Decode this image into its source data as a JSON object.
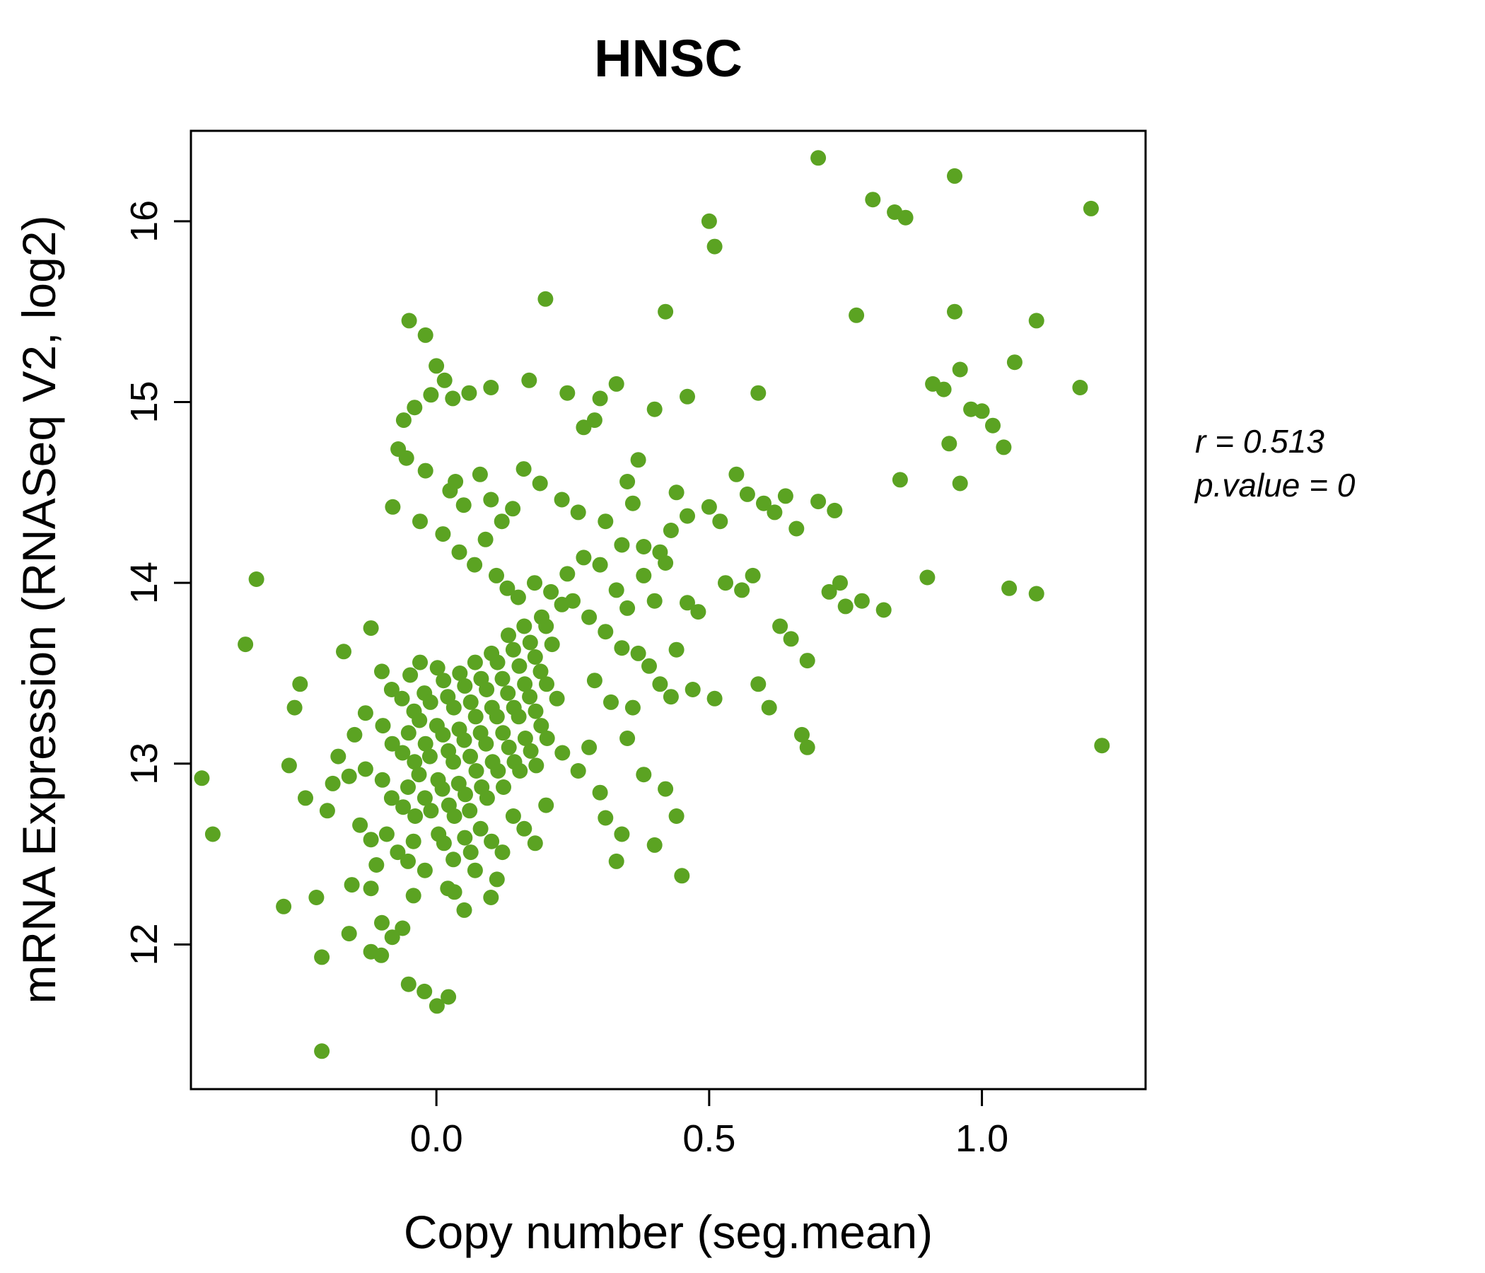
{
  "chart_data": {
    "type": "scatter",
    "title": "HNSC",
    "xlabel": "Copy number (seg.mean)",
    "ylabel": "mRNA Expression (RNASeq V2, log2)",
    "annotation": {
      "r_line": "r = 0.513",
      "p_line": "p.value = 0"
    },
    "xlim": [
      -0.45,
      1.3
    ],
    "ylim": [
      11.2,
      16.5
    ],
    "x_ticks": [
      {
        "value": 0.0,
        "label": "0.0"
      },
      {
        "value": 0.5,
        "label": "0.5"
      },
      {
        "value": 1.0,
        "label": "1.0"
      }
    ],
    "y_ticks": [
      {
        "value": 12,
        "label": "12"
      },
      {
        "value": 13,
        "label": "13"
      },
      {
        "value": 14,
        "label": "14"
      },
      {
        "value": 15,
        "label": "15"
      },
      {
        "value": 16,
        "label": "16"
      }
    ],
    "grid": false,
    "legend": "none",
    "colors": {
      "point": "#5ba322",
      "title": "#5ba322",
      "axis": "#000000"
    },
    "points": [
      [
        -0.43,
        12.92
      ],
      [
        -0.41,
        12.61
      ],
      [
        -0.33,
        14.02
      ],
      [
        -0.35,
        13.66
      ],
      [
        -0.27,
        12.99
      ],
      [
        -0.26,
        13.31
      ],
      [
        -0.25,
        13.44
      ],
      [
        -0.24,
        12.81
      ],
      [
        -0.28,
        12.21
      ],
      [
        -0.22,
        12.26
      ],
      [
        -0.21,
        11.93
      ],
      [
        -0.2,
        12.74
      ],
      [
        -0.19,
        12.89
      ],
      [
        -0.18,
        13.04
      ],
      [
        -0.17,
        13.62
      ],
      [
        -0.16,
        12.93
      ],
      [
        -0.21,
        11.41
      ],
      [
        -0.155,
        12.33
      ],
      [
        -0.15,
        13.16
      ],
      [
        -0.13,
        12.97
      ],
      [
        -0.14,
        12.66
      ],
      [
        -0.12,
        12.58
      ],
      [
        -0.13,
        13.28
      ],
      [
        -0.12,
        13.75
      ],
      [
        -0.11,
        12.44
      ],
      [
        -0.16,
        12.06
      ],
      [
        -0.12,
        11.96
      ],
      [
        -0.1,
        12.12
      ],
      [
        -0.05,
        15.45
      ],
      [
        -0.02,
        15.37
      ],
      [
        0.0,
        15.2
      ],
      [
        -0.01,
        15.04
      ],
      [
        0.015,
        15.12
      ],
      [
        -0.04,
        14.97
      ],
      [
        -0.06,
        14.9
      ],
      [
        -0.07,
        14.74
      ],
      [
        -0.055,
        14.69
      ],
      [
        -0.08,
        14.42
      ],
      [
        -0.02,
        14.62
      ],
      [
        0.025,
        14.51
      ],
      [
        0.035,
        14.56
      ],
      [
        -0.03,
        14.34
      ],
      [
        0.05,
        14.43
      ],
      [
        0.012,
        14.27
      ],
      [
        0.042,
        14.17
      ],
      [
        0.08,
        14.6
      ],
      [
        0.1,
        14.46
      ],
      [
        0.12,
        14.34
      ],
      [
        0.09,
        14.24
      ],
      [
        0.14,
        14.41
      ],
      [
        0.07,
        14.1
      ],
      [
        0.11,
        14.04
      ],
      [
        0.13,
        13.97
      ],
      [
        0.03,
        15.02
      ],
      [
        0.06,
        15.05
      ],
      [
        0.1,
        15.08
      ],
      [
        0.17,
        15.12
      ],
      [
        0.2,
        15.57
      ],
      [
        0.24,
        15.05
      ],
      [
        0.27,
        14.86
      ],
      [
        0.3,
        15.02
      ],
      [
        0.29,
        14.9
      ],
      [
        0.33,
        15.1
      ],
      [
        0.35,
        14.56
      ],
      [
        0.38,
        14.2
      ],
      [
        0.4,
        14.96
      ],
      [
        0.42,
        15.5
      ],
      [
        0.36,
        14.44
      ],
      [
        0.23,
        14.46
      ],
      [
        0.26,
        14.39
      ],
      [
        0.31,
        14.34
      ],
      [
        0.34,
        14.21
      ],
      [
        0.41,
        14.17
      ],
      [
        0.44,
        14.5
      ],
      [
        0.46,
        14.37
      ],
      [
        0.43,
        14.29
      ],
      [
        0.37,
        14.68
      ],
      [
        0.46,
        15.03
      ],
      [
        0.7,
        16.35
      ],
      [
        0.95,
        16.25
      ],
      [
        0.8,
        16.12
      ],
      [
        0.84,
        16.05
      ],
      [
        1.2,
        16.07
      ],
      [
        0.77,
        15.48
      ],
      [
        0.95,
        15.5
      ],
      [
        1.1,
        15.45
      ],
      [
        0.5,
        16.0
      ],
      [
        0.51,
        15.86
      ],
      [
        0.59,
        15.05
      ],
      [
        0.91,
        15.1
      ],
      [
        0.93,
        15.07
      ],
      [
        0.96,
        15.18
      ],
      [
        1.06,
        15.22
      ],
      [
        0.98,
        14.96
      ],
      [
        1.0,
        14.95
      ],
      [
        1.02,
        14.87
      ],
      [
        0.94,
        14.77
      ],
      [
        1.04,
        14.75
      ],
      [
        1.18,
        15.08
      ],
      [
        0.85,
        14.57
      ],
      [
        0.96,
        14.55
      ],
      [
        0.86,
        16.02
      ],
      [
        0.5,
        14.42
      ],
      [
        0.52,
        14.34
      ],
      [
        0.55,
        14.6
      ],
      [
        0.57,
        14.49
      ],
      [
        0.6,
        14.44
      ],
      [
        0.62,
        14.39
      ],
      [
        0.64,
        14.48
      ],
      [
        0.66,
        14.3
      ],
      [
        0.53,
        14.0
      ],
      [
        0.56,
        13.96
      ],
      [
        0.58,
        14.04
      ],
      [
        0.63,
        13.76
      ],
      [
        0.65,
        13.69
      ],
      [
        0.68,
        13.57
      ],
      [
        0.72,
        13.95
      ],
      [
        0.75,
        13.87
      ],
      [
        0.48,
        13.84
      ],
      [
        0.47,
        13.41
      ],
      [
        0.51,
        13.36
      ],
      [
        0.59,
        13.44
      ],
      [
        0.61,
        13.31
      ],
      [
        0.67,
        13.16
      ],
      [
        0.74,
        14.0
      ],
      [
        0.7,
        14.45
      ],
      [
        0.73,
        14.4
      ],
      [
        0.9,
        14.03
      ],
      [
        1.05,
        13.97
      ],
      [
        1.1,
        13.94
      ],
      [
        1.22,
        13.1
      ],
      [
        0.68,
        13.09
      ],
      [
        0.45,
        12.38
      ],
      [
        0.78,
        13.9
      ],
      [
        0.82,
        13.85
      ],
      [
        0.27,
        14.14
      ],
      [
        0.3,
        14.1
      ],
      [
        0.33,
        13.96
      ],
      [
        0.35,
        13.86
      ],
      [
        0.38,
        14.04
      ],
      [
        0.4,
        13.9
      ],
      [
        0.42,
        14.11
      ],
      [
        0.28,
        13.81
      ],
      [
        0.31,
        13.73
      ],
      [
        0.34,
        13.64
      ],
      [
        0.37,
        13.61
      ],
      [
        0.39,
        13.54
      ],
      [
        0.44,
        13.63
      ],
      [
        0.46,
        13.89
      ],
      [
        0.29,
        13.46
      ],
      [
        0.32,
        13.34
      ],
      [
        0.36,
        13.31
      ],
      [
        0.41,
        13.44
      ],
      [
        0.43,
        13.37
      ],
      [
        0.25,
        13.9
      ],
      [
        0.24,
        14.05
      ],
      [
        0.26,
        12.96
      ],
      [
        0.3,
        12.84
      ],
      [
        0.34,
        12.61
      ],
      [
        0.38,
        12.94
      ],
      [
        0.42,
        12.86
      ],
      [
        0.44,
        12.71
      ],
      [
        0.33,
        12.46
      ],
      [
        0.28,
        13.09
      ],
      [
        0.35,
        13.14
      ],
      [
        0.31,
        12.7
      ],
      [
        0.4,
        12.55
      ],
      [
        -0.1,
        13.51
      ],
      [
        -0.082,
        13.41
      ],
      [
        -0.063,
        13.36
      ],
      [
        -0.048,
        13.49
      ],
      [
        -0.041,
        13.29
      ],
      [
        -0.03,
        13.56
      ],
      [
        -0.022,
        13.39
      ],
      [
        -0.011,
        13.34
      ],
      [
        0.002,
        13.53
      ],
      [
        0.013,
        13.46
      ],
      [
        0.021,
        13.37
      ],
      [
        0.032,
        13.31
      ],
      [
        0.043,
        13.5
      ],
      [
        0.052,
        13.43
      ],
      [
        0.063,
        13.34
      ],
      [
        0.071,
        13.56
      ],
      [
        0.082,
        13.47
      ],
      [
        0.092,
        13.41
      ],
      [
        0.101,
        13.61
      ],
      [
        0.112,
        13.56
      ],
      [
        0.121,
        13.47
      ],
      [
        0.132,
        13.71
      ],
      [
        0.141,
        13.63
      ],
      [
        0.152,
        13.54
      ],
      [
        0.161,
        13.76
      ],
      [
        0.172,
        13.67
      ],
      [
        0.181,
        13.59
      ],
      [
        0.193,
        13.81
      ],
      [
        0.201,
        13.76
      ],
      [
        0.212,
        13.66
      ],
      [
        -0.098,
        13.21
      ],
      [
        -0.081,
        13.11
      ],
      [
        -0.062,
        13.06
      ],
      [
        -0.051,
        13.17
      ],
      [
        -0.04,
        13.01
      ],
      [
        -0.031,
        13.24
      ],
      [
        -0.02,
        13.11
      ],
      [
        -0.012,
        13.04
      ],
      [
        0.001,
        13.21
      ],
      [
        0.012,
        13.16
      ],
      [
        0.022,
        13.07
      ],
      [
        0.031,
        13.01
      ],
      [
        0.042,
        13.19
      ],
      [
        0.051,
        13.13
      ],
      [
        0.062,
        13.04
      ],
      [
        0.072,
        13.26
      ],
      [
        0.081,
        13.17
      ],
      [
        0.091,
        13.11
      ],
      [
        0.102,
        13.31
      ],
      [
        0.111,
        13.26
      ],
      [
        0.122,
        13.17
      ],
      [
        0.131,
        13.39
      ],
      [
        0.142,
        13.31
      ],
      [
        0.151,
        13.26
      ],
      [
        0.162,
        13.44
      ],
      [
        0.171,
        13.37
      ],
      [
        0.182,
        13.29
      ],
      [
        0.191,
        13.51
      ],
      [
        0.202,
        13.44
      ],
      [
        0.221,
        13.36
      ],
      [
        -0.099,
        12.91
      ],
      [
        -0.082,
        12.81
      ],
      [
        -0.061,
        12.76
      ],
      [
        -0.052,
        12.87
      ],
      [
        -0.039,
        12.71
      ],
      [
        -0.032,
        12.94
      ],
      [
        -0.021,
        12.81
      ],
      [
        -0.01,
        12.74
      ],
      [
        0.003,
        12.91
      ],
      [
        0.011,
        12.86
      ],
      [
        0.023,
        12.77
      ],
      [
        0.033,
        12.71
      ],
      [
        0.041,
        12.89
      ],
      [
        0.053,
        12.83
      ],
      [
        0.061,
        12.74
      ],
      [
        0.073,
        12.96
      ],
      [
        0.083,
        12.87
      ],
      [
        0.093,
        12.81
      ],
      [
        0.103,
        13.01
      ],
      [
        0.113,
        12.96
      ],
      [
        0.123,
        12.87
      ],
      [
        0.133,
        13.09
      ],
      [
        0.143,
        13.01
      ],
      [
        0.153,
        12.96
      ],
      [
        0.163,
        13.14
      ],
      [
        0.173,
        13.07
      ],
      [
        0.183,
        12.99
      ],
      [
        0.192,
        13.21
      ],
      [
        0.203,
        13.14
      ],
      [
        0.231,
        13.06
      ],
      [
        -0.091,
        12.61
      ],
      [
        -0.071,
        12.51
      ],
      [
        -0.052,
        12.46
      ],
      [
        -0.042,
        12.57
      ],
      [
        -0.021,
        12.41
      ],
      [
        0.004,
        12.61
      ],
      [
        0.014,
        12.56
      ],
      [
        0.031,
        12.47
      ],
      [
        0.052,
        12.59
      ],
      [
        0.063,
        12.51
      ],
      [
        0.081,
        12.64
      ],
      [
        0.101,
        12.57
      ],
      [
        0.121,
        12.51
      ],
      [
        0.141,
        12.71
      ],
      [
        0.161,
        12.64
      ],
      [
        0.181,
        12.56
      ],
      [
        0.201,
        12.77
      ],
      [
        0.071,
        12.41
      ],
      [
        0.111,
        12.36
      ],
      [
        0.021,
        12.31
      ],
      [
        -0.051,
        11.78
      ],
      [
        -0.022,
        11.74
      ],
      [
        0.001,
        11.66
      ],
      [
        0.022,
        11.71
      ],
      [
        -0.081,
        12.04
      ],
      [
        -0.101,
        11.94
      ],
      [
        -0.042,
        12.27
      ],
      [
        0.033,
        12.29
      ],
      [
        -0.062,
        12.09
      ],
      [
        0.051,
        12.19
      ],
      [
        -0.12,
        12.31
      ],
      [
        0.1,
        12.26
      ],
      [
        0.15,
        13.92
      ],
      [
        0.18,
        14.0
      ],
      [
        0.21,
        13.95
      ],
      [
        0.23,
        13.88
      ],
      [
        0.16,
        14.63
      ],
      [
        0.19,
        14.55
      ]
    ]
  }
}
